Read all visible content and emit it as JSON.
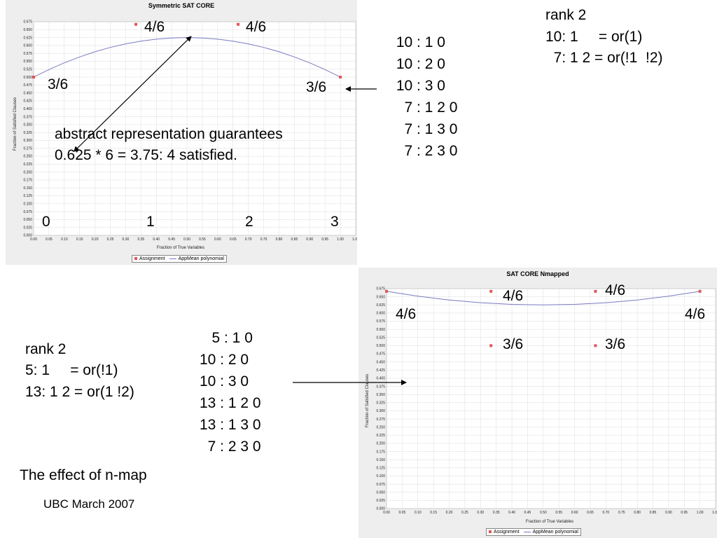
{
  "charts": [
    {
      "type": "scatter",
      "title": "Symmetric SAT CORE",
      "xlabel": "Fraction of True Variables",
      "ylabel": "Fraction of Satisfied Clauses",
      "xlim": [
        0,
        1.05
      ],
      "ylim": [
        0,
        0.675
      ],
      "x_ticks": [
        "0.00",
        "0.05",
        "0.10",
        "0.15",
        "0.20",
        "0.25",
        "0.30",
        "0.35",
        "0.40",
        "0.45",
        "0.50",
        "0.55",
        "0.60",
        "0.65",
        "0.70",
        "0.75",
        "0.80",
        "0.85",
        "0.90",
        "0.95",
        "1.00",
        "1.05"
      ],
      "y_ticks": [
        "0.000",
        "0.025",
        "0.050",
        "0.075",
        "0.100",
        "0.125",
        "0.150",
        "0.175",
        "0.200",
        "0.225",
        "0.250",
        "0.275",
        "0.300",
        "0.325",
        "0.350",
        "0.375",
        "0.400",
        "0.425",
        "0.450",
        "0.475",
        "0.500",
        "0.525",
        "0.550",
        "0.575",
        "0.600",
        "0.625",
        "0.650",
        "0.675"
      ],
      "grid": true,
      "legend": {
        "placement": "bottom",
        "assignment": "Assignment",
        "polynomial": "AppMean polynomial"
      },
      "points": [
        {
          "x": 0.0,
          "y": 0.5
        },
        {
          "x": 0.3333,
          "y": 0.6667
        },
        {
          "x": 0.6667,
          "y": 0.6667
        },
        {
          "x": 1.0,
          "y": 0.5
        }
      ],
      "curve": [
        {
          "x": 0.0,
          "y": 0.5
        },
        {
          "x": 0.05,
          "y": 0.52375
        },
        {
          "x": 0.1,
          "y": 0.545
        },
        {
          "x": 0.15,
          "y": 0.56375
        },
        {
          "x": 0.2,
          "y": 0.58
        },
        {
          "x": 0.25,
          "y": 0.59375
        },
        {
          "x": 0.3,
          "y": 0.605
        },
        {
          "x": 0.35,
          "y": 0.61375
        },
        {
          "x": 0.4,
          "y": 0.62
        },
        {
          "x": 0.45,
          "y": 0.62375
        },
        {
          "x": 0.5,
          "y": 0.625
        },
        {
          "x": 0.55,
          "y": 0.62375
        },
        {
          "x": 0.6,
          "y": 0.62
        },
        {
          "x": 0.65,
          "y": 0.61375
        },
        {
          "x": 0.7,
          "y": 0.605
        },
        {
          "x": 0.75,
          "y": 0.59375
        },
        {
          "x": 0.8,
          "y": 0.58
        },
        {
          "x": 0.85,
          "y": 0.56375
        },
        {
          "x": 0.9,
          "y": 0.545
        },
        {
          "x": 0.95,
          "y": 0.52375
        },
        {
          "x": 1.0,
          "y": 0.5
        }
      ],
      "annotations": {
        "p1": "4/6",
        "p2": "4/6",
        "p0": "3/6",
        "p3": "3/6",
        "n0": "0",
        "n1": "1",
        "n2": "2",
        "n3": "3",
        "abstract1": "abstract representation guarantees",
        "abstract2": "0.625 * 6 = 3.75: 4 satisfied."
      }
    },
    {
      "type": "scatter",
      "title": "SAT CORE Nmapped",
      "xlabel": "Fraction of True Variables",
      "ylabel": "Fraction of Satisfied Clauses",
      "xlim": [
        0,
        1.05
      ],
      "ylim": [
        0,
        0.675
      ],
      "x_ticks": [
        "0.00",
        "0.05",
        "0.10",
        "0.15",
        "0.20",
        "0.25",
        "0.30",
        "0.35",
        "0.40",
        "0.45",
        "0.50",
        "0.55",
        "0.60",
        "0.65",
        "0.70",
        "0.75",
        "0.80",
        "0.85",
        "0.90",
        "0.95",
        "1.00",
        "1.05"
      ],
      "y_ticks": [
        "0.000",
        "0.025",
        "0.050",
        "0.075",
        "0.100",
        "0.125",
        "0.150",
        "0.175",
        "0.200",
        "0.225",
        "0.250",
        "0.275",
        "0.300",
        "0.325",
        "0.350",
        "0.375",
        "0.400",
        "0.425",
        "0.450",
        "0.475",
        "0.500",
        "0.525",
        "0.550",
        "0.575",
        "0.600",
        "0.625",
        "0.650",
        "0.675"
      ],
      "grid": true,
      "legend": {
        "placement": "bottom",
        "assignment": "Assignment",
        "polynomial": "AppMean polynomial"
      },
      "points": [
        {
          "x": 0.0,
          "y": 0.6667
        },
        {
          "x": 0.3333,
          "y": 0.6667
        },
        {
          "x": 0.6667,
          "y": 0.6667
        },
        {
          "x": 1.0,
          "y": 0.6667
        },
        {
          "x": 0.3333,
          "y": 0.5
        },
        {
          "x": 0.6667,
          "y": 0.5
        }
      ],
      "curve": [
        {
          "x": 0.0,
          "y": 0.6667
        },
        {
          "x": 0.1,
          "y": 0.6517
        },
        {
          "x": 0.2,
          "y": 0.64
        },
        {
          "x": 0.3,
          "y": 0.6317
        },
        {
          "x": 0.4,
          "y": 0.6267
        },
        {
          "x": 0.5,
          "y": 0.625
        },
        {
          "x": 0.6,
          "y": 0.6267
        },
        {
          "x": 0.7,
          "y": 0.6317
        },
        {
          "x": 0.8,
          "y": 0.64
        },
        {
          "x": 0.9,
          "y": 0.6517
        },
        {
          "x": 1.0,
          "y": 0.6667
        }
      ],
      "annotations": {
        "a": "4/6",
        "b": "4/6",
        "c": "4/6",
        "d": "4/6",
        "e": "3/6",
        "f": "3/6"
      }
    }
  ],
  "chart_data": [
    {
      "type": "scatter",
      "title": "Symmetric SAT CORE",
      "xlabel": "Fraction of True Variables",
      "ylabel": "Fraction of Satisfied Clauses",
      "xlim": [
        0,
        1.05
      ],
      "ylim": [
        0,
        0.675
      ],
      "series": [
        {
          "name": "Assignment",
          "x": [
            0.0,
            0.3333,
            0.6667,
            1.0
          ],
          "y": [
            0.5,
            0.6667,
            0.6667,
            0.5
          ]
        },
        {
          "name": "AppMean polynomial",
          "x": [
            0.0,
            0.25,
            0.5,
            0.75,
            1.0
          ],
          "y": [
            0.5,
            0.59375,
            0.625,
            0.59375,
            0.5
          ]
        }
      ]
    },
    {
      "type": "scatter",
      "title": "SAT CORE Nmapped",
      "xlabel": "Fraction of True Variables",
      "ylabel": "Fraction of Satisfied Clauses",
      "xlim": [
        0,
        1.05
      ],
      "ylim": [
        0,
        0.675
      ],
      "series": [
        {
          "name": "Assignment",
          "x": [
            0.0,
            0.3333,
            0.6667,
            1.0,
            0.3333,
            0.6667
          ],
          "y": [
            0.6667,
            0.6667,
            0.6667,
            0.6667,
            0.5,
            0.5
          ]
        },
        {
          "name": "AppMean polynomial",
          "x": [
            0.0,
            0.5,
            1.0
          ],
          "y": [
            0.6667,
            0.625,
            0.6667
          ]
        }
      ]
    }
  ],
  "slide": {
    "rank_top": {
      "title": "rank 2",
      "l1": "10: 1     = or(1)",
      "l2": "  7: 1 2 = or(!1  !2)"
    },
    "clauses_top": " 10 : 1 0\n 10 : 2 0\n 10 : 3 0\n   7 : 1 2 0\n   7 : 1 3 0\n   7 : 2 3 0",
    "rank_bottom": {
      "title": "rank 2",
      "l1": "5: 1     = or(!1)",
      "l2": "13: 1 2 = or(1 !2)"
    },
    "clauses_bottom": "   5 : 1 0\n10 : 2 0\n10 : 3 0\n13 : 1 2 0\n13 : 1 3 0\n  7 : 2 3 0",
    "effect": "The effect of n-map",
    "footer": "UBC March 2007"
  },
  "colors": {
    "point": "#e0565b",
    "curve": "#7a7ac0",
    "panel": "#eeeeee",
    "grid": "#dcdcdc"
  }
}
